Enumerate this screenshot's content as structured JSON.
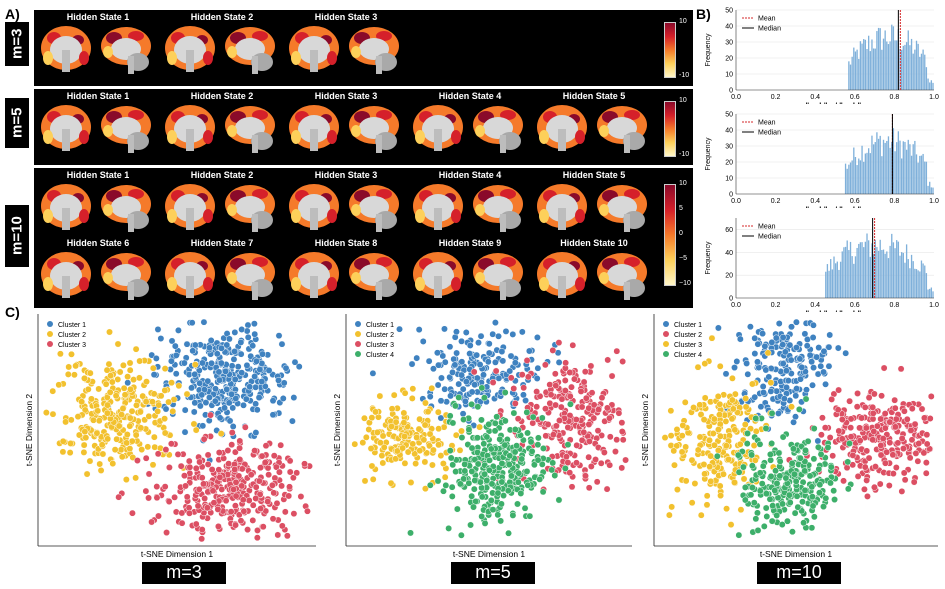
{
  "panel_labels": {
    "a": "A)",
    "b": "B)",
    "c": "C)"
  },
  "strips": {
    "m3": {
      "label": "m=3",
      "titles": [
        "Hidden State 1",
        "Hidden State 2",
        "Hidden State 3"
      ]
    },
    "m5": {
      "label": "m=5",
      "titles": [
        "Hidden State 1",
        "Hidden State 2",
        "Hidden State 3",
        "Hidden State 4",
        "Hidden State 5"
      ]
    },
    "m10": {
      "label": "m=10",
      "titles_top": [
        "Hidden State 1",
        "Hidden State 2",
        "Hidden State 3",
        "Hidden State 4",
        "Hidden State 5"
      ],
      "titles_bottom": [
        "Hidden State 6",
        "Hidden State 7",
        "Hidden State 8",
        "Hidden State 9",
        "Hidden State 10"
      ]
    }
  },
  "colorbar": {
    "ticks_small": [
      "10",
      "-10"
    ],
    "ticks_large": [
      "10",
      "5",
      "0",
      "−5",
      "−10"
    ],
    "colors": [
      "#8a0a2a",
      "#d5202a",
      "#f57a2a",
      "#fdd05a",
      "#fff6c8"
    ]
  },
  "histograms": {
    "legend_mean": "Mean",
    "legend_median": "Median",
    "ylabel": "Frequency",
    "xlabel": "‖w_h‖∞ / ‖w_h‖₂",
    "xticks": [
      "0.0",
      "0.2",
      "0.4",
      "0.6",
      "0.8",
      "1.0"
    ],
    "bar_color": "#7fb0da",
    "mean_color": "#d62728",
    "median_color": "#000000",
    "plots": [
      {
        "yticks": [
          "0",
          "10",
          "20",
          "30",
          "40",
          "50"
        ],
        "ymax": 50,
        "mean": 0.83,
        "median": 0.82,
        "min_x": 0.57
      },
      {
        "yticks": [
          "0",
          "10",
          "20",
          "30",
          "40",
          "50"
        ],
        "ymax": 50,
        "mean": 0.79,
        "median": 0.79,
        "min_x": 0.55
      },
      {
        "yticks": [
          "0",
          "20",
          "40",
          "60"
        ],
        "ymax": 70,
        "mean": 0.7,
        "median": 0.69,
        "min_x": 0.45
      }
    ]
  },
  "tsne": {
    "xlabel": "t-SNE Dimension 1",
    "ylabel": "t-SNE Dimension 2",
    "colors": {
      "blue": "#3f82c0",
      "yellow": "#f2c12e",
      "red": "#dc4f63",
      "green": "#3daf6a"
    },
    "plots": [
      {
        "label": "m=3",
        "legend": [
          "Cluster 1",
          "Cluster 2",
          "Cluster 3"
        ],
        "legend_colors": [
          "#3f82c0",
          "#f2c12e",
          "#dc4f63"
        ]
      },
      {
        "label": "m=5",
        "legend": [
          "Cluster 1",
          "Cluster 2",
          "Cluster 3",
          "Cluster 4"
        ],
        "legend_colors": [
          "#3f82c0",
          "#f2c12e",
          "#dc4f63",
          "#3daf6a"
        ]
      },
      {
        "label": "m=10",
        "legend": [
          "Cluster 1",
          "Cluster 2",
          "Cluster 3",
          "Cluster 4"
        ],
        "legend_colors": [
          "#3f82c0",
          "#dc4f63",
          "#f2c12e",
          "#3daf6a"
        ]
      }
    ]
  }
}
